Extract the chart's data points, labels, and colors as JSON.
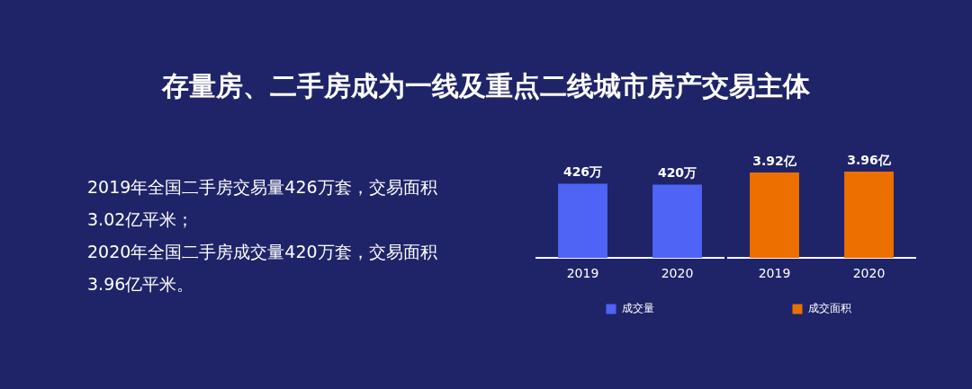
{
  "chart_data": [
    {
      "type": "other",
      "title": "存量房、二手房成为一线及重点二线城市房产交易主体",
      "annotations": [
        "2019年全国二手房交易量426万套，交易面积3.02亿平米；",
        "2020年全国二手房成交量420万套，交易面积3.96亿平米。"
      ]
    },
    {
      "type": "bar",
      "categories": [
        "2019",
        "2020"
      ],
      "series": [
        {
          "name": "成交量",
          "color": "#4f63f5",
          "values": [
            426,
            420
          ],
          "value_labels": [
            "426万",
            "420万"
          ]
        }
      ],
      "legend": "bottom",
      "tick_labels": "x"
    },
    {
      "type": "bar",
      "categories": [
        "2019",
        "2020"
      ],
      "series": [
        {
          "name": "成交面积",
          "color": "#ec6f00",
          "values": [
            3.92,
            3.96
          ],
          "value_labels": [
            "3.92亿",
            "3.96亿"
          ]
        }
      ],
      "legend": "bottom",
      "tick_labels": "x"
    }
  ]
}
